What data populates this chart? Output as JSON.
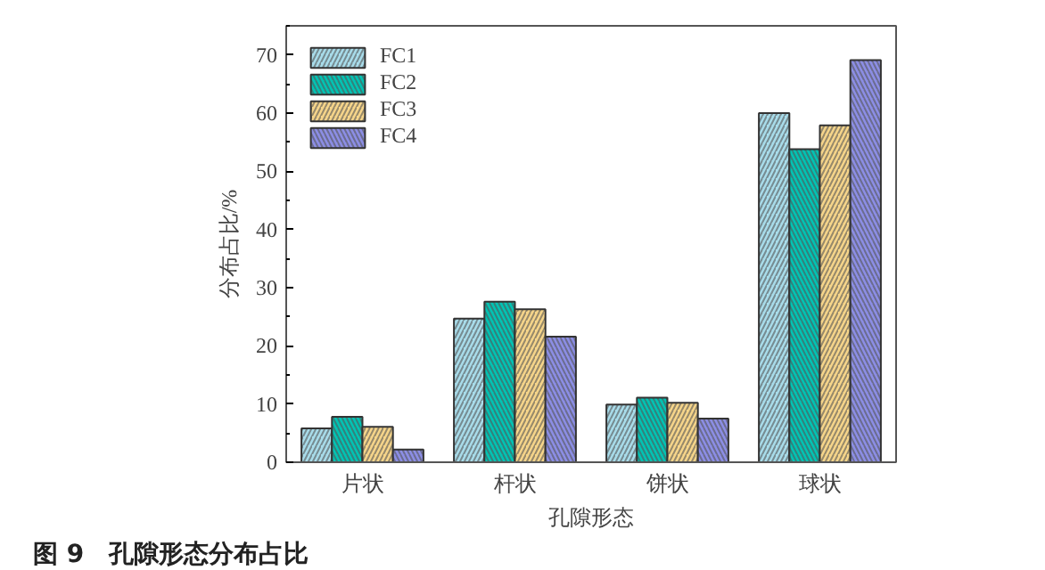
{
  "chart_data": {
    "type": "bar",
    "title": "图 9　孔隙形态分布占比",
    "xlabel": "孔隙形态",
    "ylabel": "分布占比/%",
    "categories": [
      "片状",
      "杆状",
      "饼状",
      "球状"
    ],
    "series": [
      {
        "name": "FC1",
        "color": "#a8dcea",
        "values": [
          5.8,
          24.7,
          9.9,
          60.0
        ]
      },
      {
        "name": "FC2",
        "color": "#00c4b4",
        "values": [
          7.8,
          27.6,
          11.1,
          53.8
        ]
      },
      {
        "name": "FC3",
        "color": "#f6d58a",
        "values": [
          6.1,
          26.3,
          10.2,
          57.9
        ]
      },
      {
        "name": "FC4",
        "color": "#8c8ee6",
        "values": [
          2.2,
          21.6,
          7.5,
          69.1
        ]
      }
    ],
    "ylim": [
      0,
      75
    ],
    "yticks": [
      0,
      10,
      20,
      30,
      40,
      50,
      60,
      70
    ],
    "grid": false,
    "legend": "top left"
  }
}
